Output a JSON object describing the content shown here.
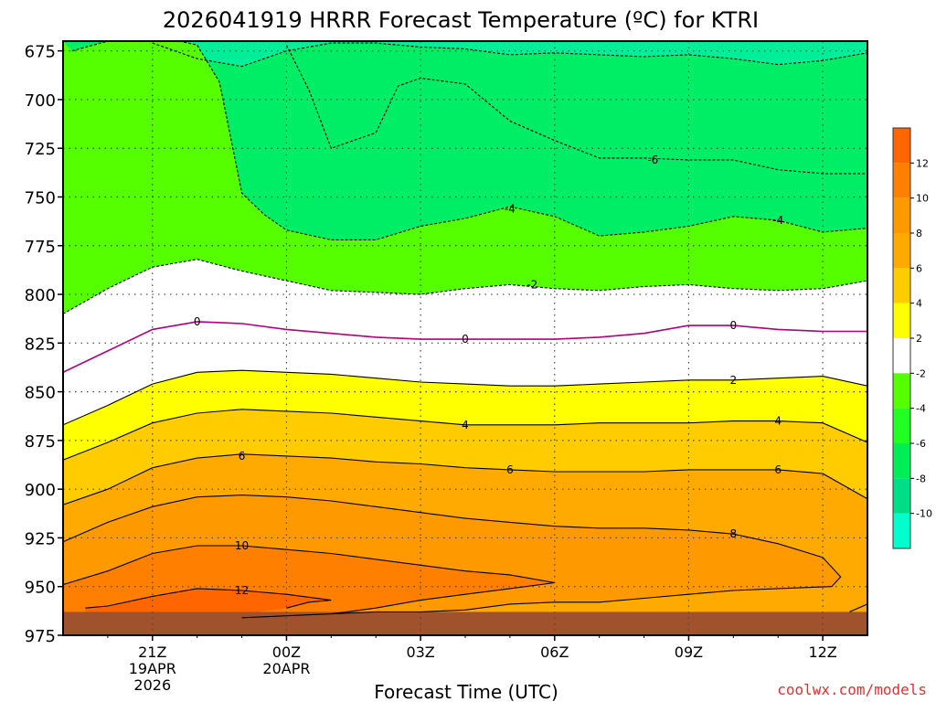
{
  "chart_data": {
    "type": "contour",
    "title": "2026041919 HRRR Forecast Temperature (ºC) for KTRI",
    "xlabel": "Forecast Time (UTC)",
    "ylabel": "",
    "y_axis": {
      "ticks": [
        675,
        700,
        725,
        750,
        775,
        800,
        825,
        850,
        875,
        900,
        925,
        950,
        975
      ],
      "inverted": true
    },
    "x_axis": {
      "ticks": [
        {
          "hour": 2,
          "label": "21Z",
          "date_label": [
            "19APR",
            "2026"
          ]
        },
        {
          "hour": 5,
          "label": "00Z",
          "date_label": [
            "20APR"
          ]
        },
        {
          "hour": 8,
          "label": "03Z",
          "date_label": []
        },
        {
          "hour": 11,
          "label": "06Z",
          "date_label": []
        },
        {
          "hour": 14,
          "label": "09Z",
          "date_label": []
        },
        {
          "hour": 17,
          "label": "12Z",
          "date_label": []
        }
      ],
      "xlim": [
        0,
        18
      ]
    },
    "contours": [
      {
        "level": -6,
        "style": "dashed",
        "points": [
          [
            2,
            671
          ],
          [
            3,
            679
          ],
          [
            4,
            683
          ],
          [
            5,
            675
          ],
          [
            6,
            671
          ],
          [
            7,
            671
          ],
          [
            8,
            673
          ],
          [
            9,
            674
          ],
          [
            10,
            677
          ],
          [
            11,
            676
          ],
          [
            12,
            677
          ],
          [
            13,
            678
          ],
          [
            14,
            677
          ],
          [
            15,
            679
          ],
          [
            16,
            682
          ],
          [
            17,
            680
          ],
          [
            18,
            676
          ]
        ]
      },
      {
        "level": -6,
        "style": "dashed",
        "points": [
          [
            5,
            672
          ],
          [
            5.5,
            695
          ],
          [
            6,
            725
          ],
          [
            7,
            717
          ],
          [
            7.5,
            693
          ],
          [
            8,
            689
          ],
          [
            9,
            692
          ],
          [
            10,
            711
          ],
          [
            11,
            721
          ],
          [
            12,
            730
          ],
          [
            13,
            730
          ],
          [
            14,
            731
          ],
          [
            15,
            731
          ],
          [
            16,
            736
          ],
          [
            17,
            738
          ],
          [
            18,
            738
          ]
        ]
      },
      {
        "level": -4,
        "style": "dashed",
        "points": [
          [
            0.2,
            675
          ],
          [
            1,
            670
          ],
          [
            2,
            667
          ],
          [
            3,
            672
          ],
          [
            3.5,
            691
          ],
          [
            4,
            748
          ],
          [
            4.5,
            759
          ],
          [
            5,
            767
          ],
          [
            6,
            772
          ],
          [
            7,
            772
          ],
          [
            8,
            765
          ],
          [
            9,
            761
          ],
          [
            10,
            755
          ],
          [
            11,
            760
          ],
          [
            12,
            770
          ],
          [
            13,
            768
          ],
          [
            14,
            765
          ],
          [
            15,
            760
          ],
          [
            16,
            762
          ],
          [
            17,
            768
          ],
          [
            18,
            766
          ]
        ]
      },
      {
        "level": -2,
        "style": "dashed",
        "points": [
          [
            0,
            810
          ],
          [
            1,
            797
          ],
          [
            2,
            786
          ],
          [
            3,
            782
          ],
          [
            4,
            788
          ],
          [
            5,
            793
          ],
          [
            6,
            798
          ],
          [
            7,
            799
          ],
          [
            8,
            800
          ],
          [
            9,
            797
          ],
          [
            10,
            795
          ],
          [
            11,
            797
          ],
          [
            12,
            798
          ],
          [
            13,
            796
          ],
          [
            14,
            795
          ],
          [
            15,
            797
          ],
          [
            16,
            798
          ],
          [
            17,
            797
          ],
          [
            18,
            793
          ]
        ]
      },
      {
        "level": 0,
        "style": "solid",
        "color": "#b0007a",
        "points": [
          [
            0,
            840
          ],
          [
            1,
            829
          ],
          [
            2,
            818
          ],
          [
            3,
            814
          ],
          [
            4,
            815
          ],
          [
            5,
            818
          ],
          [
            6,
            820
          ],
          [
            7,
            822
          ],
          [
            8,
            823
          ],
          [
            9,
            823
          ],
          [
            10,
            823
          ],
          [
            11,
            823
          ],
          [
            12,
            822
          ],
          [
            13,
            820
          ],
          [
            14,
            816
          ],
          [
            15,
            816
          ],
          [
            16,
            818
          ],
          [
            17,
            819
          ],
          [
            18,
            819
          ]
        ]
      },
      {
        "level": 2,
        "style": "solid",
        "points": [
          [
            0,
            867
          ],
          [
            1,
            857
          ],
          [
            2,
            846
          ],
          [
            3,
            840
          ],
          [
            4,
            839
          ],
          [
            5,
            840
          ],
          [
            6,
            841
          ],
          [
            7,
            843
          ],
          [
            8,
            845
          ],
          [
            9,
            846
          ],
          [
            10,
            847
          ],
          [
            11,
            847
          ],
          [
            12,
            846
          ],
          [
            13,
            845
          ],
          [
            14,
            844
          ],
          [
            15,
            844
          ],
          [
            16,
            843
          ],
          [
            17,
            842
          ],
          [
            18,
            847
          ]
        ]
      },
      {
        "level": 4,
        "style": "solid",
        "points": [
          [
            0,
            885
          ],
          [
            1,
            876
          ],
          [
            2,
            866
          ],
          [
            3,
            861
          ],
          [
            4,
            859
          ],
          [
            5,
            860
          ],
          [
            6,
            861
          ],
          [
            7,
            863
          ],
          [
            8,
            865
          ],
          [
            9,
            867
          ],
          [
            10,
            867
          ],
          [
            11,
            867
          ],
          [
            12,
            866
          ],
          [
            13,
            866
          ],
          [
            14,
            866
          ],
          [
            15,
            865
          ],
          [
            16,
            865
          ],
          [
            17,
            866
          ],
          [
            18,
            876
          ]
        ]
      },
      {
        "level": 6,
        "style": "solid",
        "points": [
          [
            0,
            908
          ],
          [
            1,
            900
          ],
          [
            2,
            889
          ],
          [
            3,
            884
          ],
          [
            4,
            882
          ],
          [
            5,
            883
          ],
          [
            6,
            884
          ],
          [
            7,
            886
          ],
          [
            8,
            887
          ],
          [
            9,
            889
          ],
          [
            10,
            890
          ],
          [
            11,
            891
          ],
          [
            12,
            891
          ],
          [
            13,
            891
          ],
          [
            14,
            890
          ],
          [
            15,
            890
          ],
          [
            16,
            890
          ],
          [
            17,
            892
          ],
          [
            18,
            905
          ]
        ]
      },
      {
        "level": 8,
        "style": "solid",
        "points": [
          [
            0,
            927
          ],
          [
            1,
            917
          ],
          [
            2,
            909
          ],
          [
            3,
            904
          ],
          [
            4,
            903
          ],
          [
            5,
            904
          ],
          [
            6,
            906
          ],
          [
            7,
            909
          ],
          [
            8,
            912
          ],
          [
            9,
            915
          ],
          [
            10,
            917
          ],
          [
            11,
            919
          ],
          [
            12,
            920
          ],
          [
            13,
            920
          ],
          [
            14,
            921
          ],
          [
            15,
            923
          ],
          [
            16,
            928
          ],
          [
            17,
            935
          ],
          [
            17.4,
            945
          ],
          [
            17.2,
            950
          ],
          [
            16,
            951
          ],
          [
            15,
            952
          ],
          [
            14,
            954
          ],
          [
            13,
            956
          ],
          [
            12,
            958
          ],
          [
            11,
            958
          ],
          [
            10,
            959
          ],
          [
            9,
            962
          ],
          [
            8,
            963
          ],
          [
            7,
            963
          ],
          [
            6,
            964
          ]
        ]
      },
      {
        "level": 10,
        "style": "solid",
        "points": [
          [
            0,
            949
          ],
          [
            1,
            942
          ],
          [
            2,
            933
          ],
          [
            3,
            929
          ],
          [
            4,
            929
          ],
          [
            5,
            931
          ],
          [
            6,
            933
          ],
          [
            7,
            936
          ],
          [
            8,
            939
          ],
          [
            9,
            942
          ],
          [
            10,
            944
          ],
          [
            11,
            948
          ],
          [
            10,
            951
          ],
          [
            9,
            954
          ],
          [
            8,
            957
          ],
          [
            7,
            961
          ],
          [
            6,
            964
          ],
          [
            5,
            965
          ],
          [
            4,
            966
          ]
        ]
      },
      {
        "level": 10,
        "style": "solid",
        "points": [
          [
            17.6,
            963
          ],
          [
            18,
            959
          ]
        ]
      },
      {
        "level": 12,
        "style": "solid",
        "points": [
          [
            0.5,
            961
          ],
          [
            1,
            960
          ],
          [
            2,
            955
          ],
          [
            3,
            951
          ],
          [
            4,
            952
          ],
          [
            5,
            954
          ],
          [
            6,
            957
          ],
          [
            5.5,
            958
          ],
          [
            5,
            961
          ]
        ]
      }
    ],
    "contour_labels": [
      {
        "text": "-6",
        "hour": 13.2,
        "p": 731
      },
      {
        "text": "-4",
        "hour": 10,
        "p": 756
      },
      {
        "text": "-4",
        "hour": 16,
        "p": 762
      },
      {
        "text": "-2",
        "hour": 10.5,
        "p": 795
      },
      {
        "text": "0",
        "hour": 3,
        "p": 814
      },
      {
        "text": "0",
        "hour": 9,
        "p": 823
      },
      {
        "text": "0",
        "hour": 15,
        "p": 816
      },
      {
        "text": "2",
        "hour": 15,
        "p": 844
      },
      {
        "text": "4",
        "hour": 9,
        "p": 867
      },
      {
        "text": "4",
        "hour": 16,
        "p": 865
      },
      {
        "text": "6",
        "hour": 4,
        "p": 883
      },
      {
        "text": "6",
        "hour": 10,
        "p": 890
      },
      {
        "text": "6",
        "hour": 16,
        "p": 890
      },
      {
        "text": "8",
        "hour": 15,
        "p": 923
      },
      {
        "text": "10",
        "hour": 4,
        "p": 929
      },
      {
        "text": "12",
        "hour": 4,
        "p": 952
      }
    ],
    "colorbar": {
      "ticks": [
        "12",
        "10",
        "8",
        "6",
        "4",
        "2",
        "-2",
        "-4",
        "-6",
        "-8",
        "-10"
      ],
      "colors": [
        "#ff6600",
        "#ff8000",
        "#ff9900",
        "#ffaa00",
        "#ffcc00",
        "#ffff00",
        "#ffffff",
        "#55ff00",
        "#22ff22",
        "#00ee55",
        "#00dd88",
        "#00ffcc"
      ]
    },
    "ground_color": "#a0522d",
    "grid": true
  },
  "credit": "coolwx.com/models"
}
